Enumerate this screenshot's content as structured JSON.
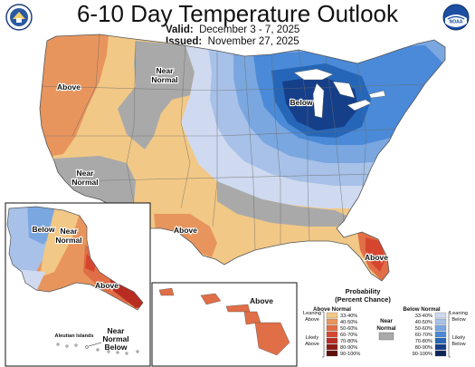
{
  "header": {
    "title": "6-10 Day Temperature Outlook",
    "valid_label": "Valid:",
    "valid_value": "December 3 - 7, 2025",
    "issued_label": "Issued:",
    "issued_value": "November 27, 2025"
  },
  "logos": [
    {
      "name": "doc-seal",
      "icon": "department-of-commerce-seal"
    },
    {
      "name": "noaa-logo",
      "icon": "noaa-logo",
      "text": "NOAA"
    }
  ],
  "conus_labels": {
    "above_west": "Above",
    "near_normal_north_1": "Near",
    "near_normal_north_2": "Normal",
    "below_great_lakes": "Below",
    "near_normal_sw_1": "Near",
    "near_normal_sw_2": "Normal",
    "above_texas": "Above",
    "above_florida": "Above"
  },
  "alaska_labels": {
    "below": "Below",
    "near_normal_1": "Near",
    "near_normal_2": "Normal",
    "above": "Above",
    "aleutian": "Aleutian Islands",
    "near_normal_below_1": "Near",
    "near_normal_below_2": "Normal",
    "near_normal_below_3": "Below"
  },
  "hawaii_labels": {
    "above": "Above"
  },
  "legend": {
    "title_1": "Probability",
    "title_2": "(Percent Chance)",
    "above_header": "Above Normal",
    "below_header": "Below Normal",
    "near_1": "Near",
    "near_2": "Normal",
    "leaning_above_1": "Leaning",
    "leaning_above_2": "Above",
    "likely_above_1": "Likely",
    "likely_above_2": "Above",
    "leaning_below_1": "Leaning",
    "leaning_below_2": "Below",
    "likely_below_1": "Likely",
    "likely_below_2": "Below",
    "ranges": [
      "33-40%",
      "40-50%",
      "50-60%",
      "60-70%",
      "70-80%",
      "80-90%",
      "90-100%"
    ],
    "above_colors": [
      "#f2c886",
      "#e8955d",
      "#e06e46",
      "#d6462f",
      "#b92c22",
      "#8e1a14",
      "#5e0f0c"
    ],
    "below_colors": [
      "#cfdaf0",
      "#a7c1e8",
      "#7aa7e0",
      "#4a8ad8",
      "#2566b8",
      "#163f8a",
      "#0c225a"
    ],
    "near_color": "#a9a9a9"
  },
  "map_colors": {
    "above_33_40": "#f2c886",
    "above_40_50": "#e8955d",
    "above_50_60": "#e06e46",
    "above_60_70": "#d6462f",
    "above_70_80": "#b92c22",
    "near_normal": "#a9a9a9",
    "below_33_40": "#cfdaf0",
    "below_40_50": "#a7c1e8",
    "below_50_60": "#7aa7e0",
    "below_60_70": "#4a8ad8",
    "below_70_80": "#2566b8",
    "below_80_90": "#163f8a"
  }
}
